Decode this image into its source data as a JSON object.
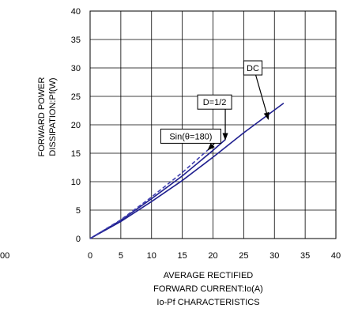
{
  "chart_data": {
    "type": "line",
    "x_ticks": [
      "0",
      "5",
      "10",
      "15",
      "20",
      "25",
      "30",
      "35",
      "40"
    ],
    "y_ticks": [
      "0",
      "5",
      "10",
      "15",
      "20",
      "25",
      "30",
      "35",
      "40"
    ],
    "xlim": [
      0,
      40
    ],
    "ylim": [
      0,
      40
    ],
    "grid": true,
    "ylabel_lines": [
      "FORWARD POWER",
      "DISSIPATION:Pf(W)"
    ],
    "xlabel_lines": [
      "AVERAGE RECTIFIED",
      "FORWARD CURRENT:Io(A)",
      "Io-Pf CHARACTERISTICS"
    ],
    "stray_label": "00",
    "series": [
      {
        "name": "DC",
        "style": "solid",
        "color": "#1f1f8f",
        "x": [
          0,
          5,
          10,
          15,
          20,
          25,
          31.5
        ],
        "y": [
          0,
          3.0,
          6.5,
          10.2,
          14.3,
          18.6,
          23.8
        ]
      },
      {
        "name": "D=1/2",
        "style": "solid",
        "color": "#1f1f8f",
        "x": [
          0,
          5,
          10,
          15,
          20,
          22
        ],
        "y": [
          0,
          3.2,
          7.0,
          11.0,
          15.5,
          17.4
        ]
      },
      {
        "name": "Sin(θ=180)",
        "style": "dashed",
        "color": "#4040b0",
        "x": [
          0,
          5,
          10,
          15,
          19.2
        ],
        "y": [
          0,
          3.3,
          7.3,
          11.6,
          15.6
        ]
      }
    ],
    "annotations": [
      {
        "text": "DC",
        "box": [
          25,
          30
        ],
        "arrow_to": [
          29,
          21
        ]
      },
      {
        "text": "D=1/2",
        "box": [
          17.5,
          24
        ],
        "arrow_to": [
          22,
          17.4
        ]
      },
      {
        "text": "Sin(θ=180)",
        "box": [
          11.5,
          18
        ],
        "arrow_to": [
          19.2,
          15.6
        ]
      }
    ]
  }
}
